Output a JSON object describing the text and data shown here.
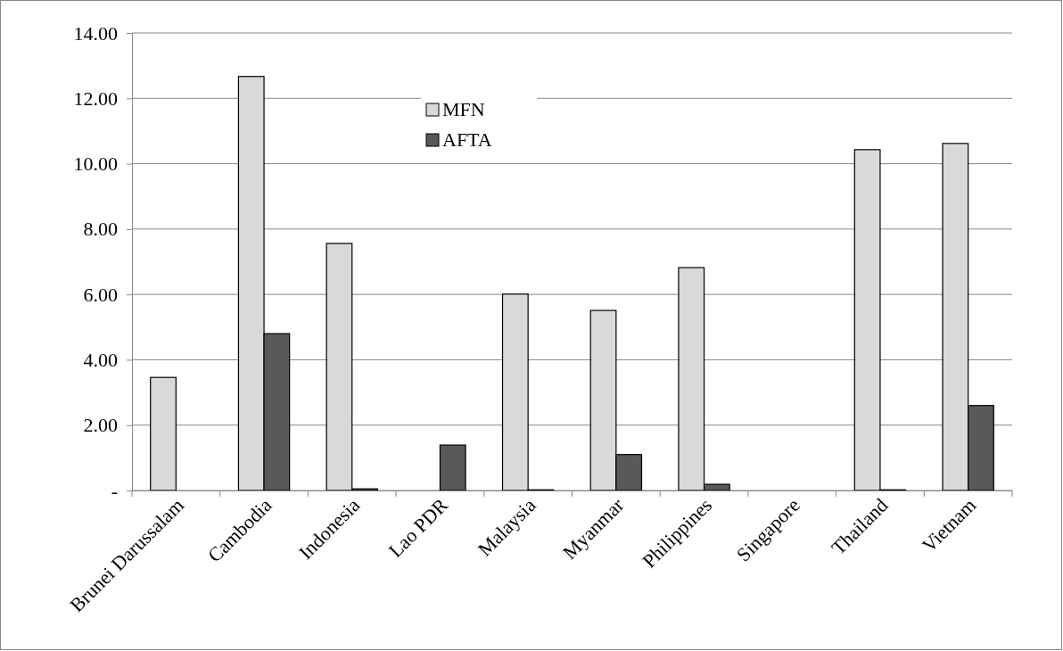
{
  "chart_data": {
    "type": "bar",
    "categories": [
      "Brunei Darussalam",
      "Cambodia",
      "Indonesia",
      "Lao PDR",
      "Malaysia",
      "Myanmar",
      "Philippines",
      "Singapore",
      "Thailand",
      "Vietnam"
    ],
    "series": [
      {
        "name": "MFN",
        "color": "#d9d9d9",
        "values": [
          3.46,
          12.67,
          7.56,
          0,
          6.01,
          5.51,
          6.82,
          0,
          10.43,
          10.62
        ]
      },
      {
        "name": "AFTA",
        "color": "#595959",
        "values": [
          0,
          4.8,
          0.05,
          1.39,
          0.02,
          1.1,
          0.19,
          0,
          0.02,
          2.6
        ]
      }
    ],
    "ylim": [
      0,
      14
    ],
    "yticks": [
      {
        "value": 0,
        "label": "-"
      },
      {
        "value": 2,
        "label": "2.00"
      },
      {
        "value": 4,
        "label": "4.00"
      },
      {
        "value": 6,
        "label": "6.00"
      },
      {
        "value": 8,
        "label": "8.00"
      },
      {
        "value": 10,
        "label": "10.00"
      },
      {
        "value": 12,
        "label": "12.00"
      },
      {
        "value": 14,
        "label": "14.00"
      }
    ],
    "grid": "y",
    "legend": "top"
  }
}
